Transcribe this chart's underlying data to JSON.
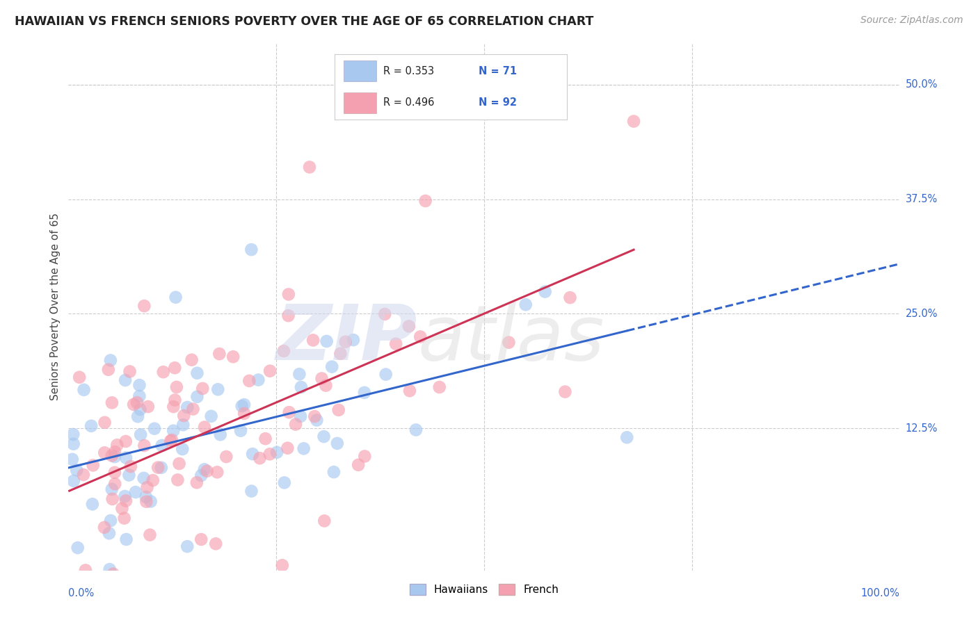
{
  "title": "HAWAIIAN VS FRENCH SENIORS POVERTY OVER THE AGE OF 65 CORRELATION CHART",
  "source": "Source: ZipAtlas.com",
  "ylabel": "Seniors Poverty Over the Age of 65",
  "xlim": [
    0.0,
    1.0
  ],
  "ylim": [
    -0.03,
    0.545
  ],
  "hawaiian_R": 0.353,
  "hawaiian_N": 71,
  "french_R": 0.496,
  "french_N": 92,
  "hawaiian_color": "#a8c8f0",
  "french_color": "#f5a0b0",
  "hawaiian_line_color": "#3366cc",
  "french_line_color": "#cc3355",
  "text_color": "#3366cc",
  "background_color": "#ffffff",
  "grid_color": "#cccccc",
  "ytick_vals": [
    0.0,
    0.125,
    0.25,
    0.375,
    0.5
  ],
  "ytick_labels": [
    "",
    "12.5%",
    "25.0%",
    "37.5%",
    "50.0%"
  ],
  "xtick_labels_left": "0.0%",
  "xtick_labels_right": "100.0%",
  "legend_items": [
    {
      "color": "#a8c8f0",
      "R": "0.353",
      "N": "71"
    },
    {
      "color": "#f5a0b0",
      "R": "0.496",
      "N": "92"
    }
  ],
  "bottom_legend": [
    "Hawaiians",
    "French"
  ],
  "bottom_legend_colors": [
    "#a8c8f0",
    "#f5a0b0"
  ]
}
